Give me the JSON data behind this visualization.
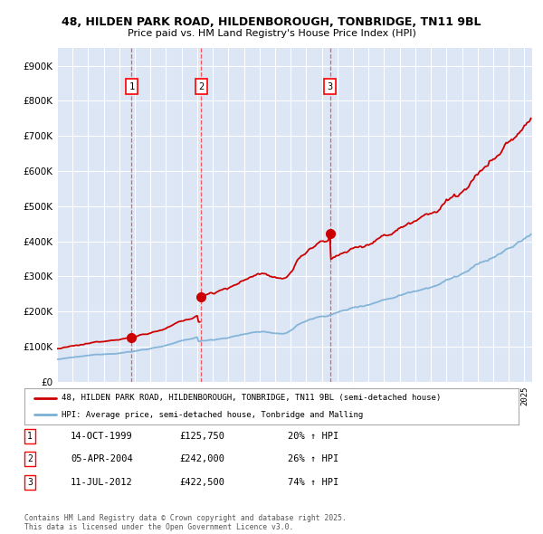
{
  "title_line1": "48, HILDEN PARK ROAD, HILDENBOROUGH, TONBRIDGE, TN11 9BL",
  "title_line2": "Price paid vs. HM Land Registry's House Price Index (HPI)",
  "ylim": [
    0,
    950000
  ],
  "yticks": [
    0,
    100000,
    200000,
    300000,
    400000,
    500000,
    600000,
    700000,
    800000,
    900000
  ],
  "ytick_labels": [
    "£0",
    "£100K",
    "£200K",
    "£300K",
    "£400K",
    "£500K",
    "£600K",
    "£700K",
    "£800K",
    "£900K"
  ],
  "plot_bg_color": "#dce6f5",
  "grid_color": "#ffffff",
  "red_line_color": "#cc0000",
  "blue_line_color": "#7bafd4",
  "marker_color": "#cc0000",
  "transaction_labels": [
    {
      "num": "1",
      "date": "14-OCT-1999",
      "price": "£125,750",
      "change": "20% ↑ HPI"
    },
    {
      "num": "2",
      "date": "05-APR-2004",
      "price": "£242,000",
      "change": "26% ↑ HPI"
    },
    {
      "num": "3",
      "date": "11-JUL-2012",
      "price": "£422,500",
      "change": "74% ↑ HPI"
    }
  ],
  "legend_line1": "48, HILDEN PARK ROAD, HILDENBOROUGH, TONBRIDGE, TN11 9BL (semi-detached house)",
  "legend_line2": "HPI: Average price, semi-detached house, Tonbridge and Malling",
  "footer_line1": "Contains HM Land Registry data © Crown copyright and database right 2025.",
  "footer_line2": "This data is licensed under the Open Government Licence v3.0."
}
